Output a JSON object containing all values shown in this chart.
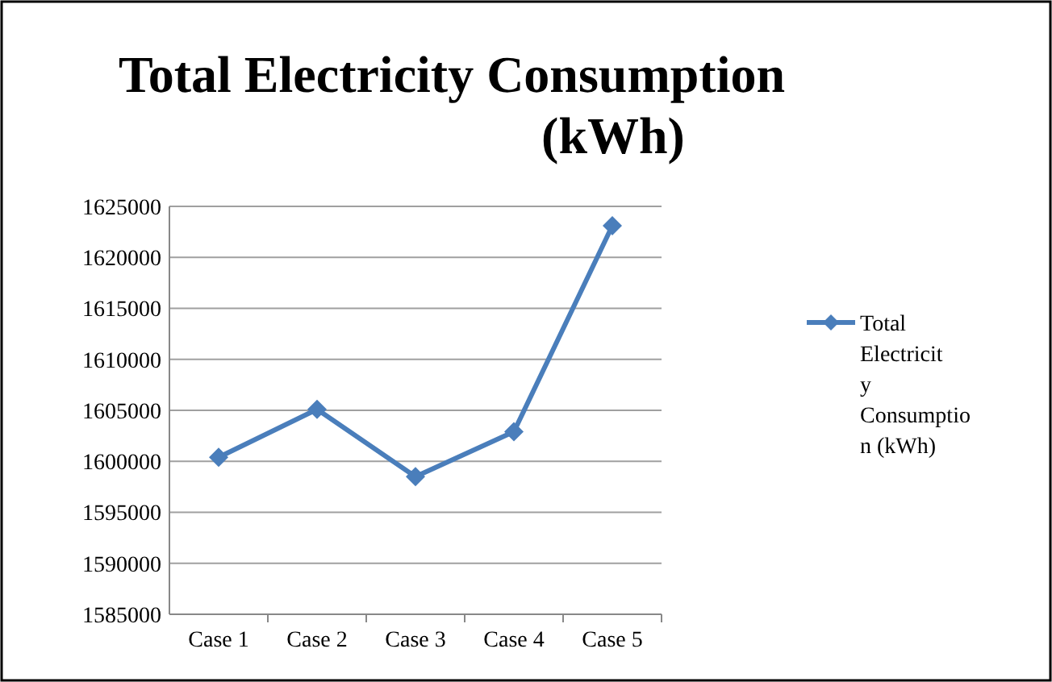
{
  "chart_data": {
    "type": "line",
    "title": "Total Electricity Consumption (kWh)",
    "categories": [
      "Case 1",
      "Case 2",
      "Case 3",
      "Case 4",
      "Case 5"
    ],
    "series": [
      {
        "name": "Total Electricity Consumption (kWh)",
        "color": "#4a7ebb",
        "values": [
          1600400,
          1605100,
          1598500,
          1602900,
          1623100
        ]
      }
    ],
    "ylim": [
      1585000,
      1625000
    ],
    "yticks": [
      1585000,
      1590000,
      1595000,
      1600000,
      1605000,
      1610000,
      1615000,
      1620000,
      1625000
    ],
    "grid": "y",
    "legend": "right",
    "marker": "diamond",
    "line_style": "solid"
  }
}
